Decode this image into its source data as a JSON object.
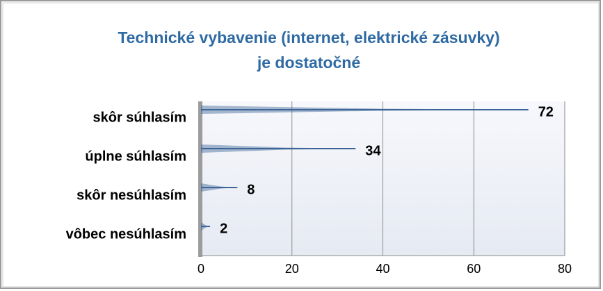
{
  "chart_data": {
    "type": "bar",
    "orientation": "horizontal",
    "title": [
      "Technické vybavenie (internet, elektrické zásuvky)",
      "je dostatočné"
    ],
    "categories": [
      "skôr súhlasím",
      "úplne súhlasím",
      "skôr nesúhlasím",
      "vôbec nesúhlasím"
    ],
    "values": [
      72,
      34,
      8,
      2
    ],
    "color": "#3e6597",
    "xlim": [
      0,
      80
    ],
    "xticks": [
      0,
      20,
      40,
      60,
      80
    ],
    "grid": true
  }
}
